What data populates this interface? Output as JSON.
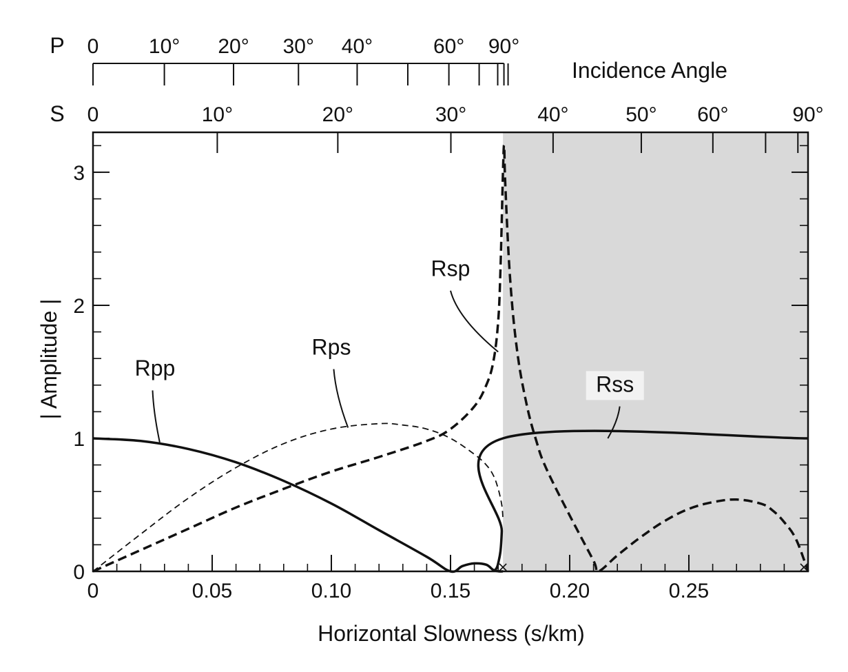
{
  "chart_data": {
    "type": "line",
    "xlabel": "Horizontal Slowness (s/km)",
    "ylabel": "| Amplitude |",
    "top_axis_title": "Incidence Angle",
    "xlim": [
      0,
      0.3
    ],
    "ylim": [
      0,
      3.3
    ],
    "x_ticks": [
      {
        "value": 0,
        "label": "0"
      },
      {
        "value": 0.05,
        "label": "0.05"
      },
      {
        "value": 0.1,
        "label": "0.10"
      },
      {
        "value": 0.15,
        "label": "0.15"
      },
      {
        "value": 0.2,
        "label": "0.20"
      },
      {
        "value": 0.25,
        "label": "0.25"
      }
    ],
    "x_minor_step": 0.01,
    "y_ticks": [
      {
        "value": 0,
        "label": "0"
      },
      {
        "value": 1,
        "label": "1"
      },
      {
        "value": 2,
        "label": "2"
      },
      {
        "value": 3,
        "label": "3"
      }
    ],
    "y_minor_step": 0.2,
    "p_axis": {
      "name": "P",
      "velocity_km_s": 5.8,
      "labeled_angles": [
        {
          "deg": 0,
          "label": "0"
        },
        {
          "deg": 10,
          "label": "10°"
        },
        {
          "deg": 20,
          "label": "20°"
        },
        {
          "deg": 30,
          "label": "30°"
        },
        {
          "deg": 40,
          "label": "40°"
        },
        {
          "deg": 60,
          "label": "60°"
        },
        {
          "deg": 90,
          "label": "90°"
        }
      ],
      "tick_angles": [
        0,
        10,
        20,
        30,
        40,
        50,
        60,
        70,
        80,
        90
      ]
    },
    "s_axis": {
      "name": "S",
      "velocity_km_s": 3.33,
      "labeled_angles": [
        {
          "deg": 0,
          "label": "0"
        },
        {
          "deg": 10,
          "label": "10°"
        },
        {
          "deg": 20,
          "label": "20°"
        },
        {
          "deg": 30,
          "label": "30°"
        },
        {
          "deg": 40,
          "label": "40°"
        },
        {
          "deg": 50,
          "label": "50°"
        },
        {
          "deg": 60,
          "label": "60°"
        },
        {
          "deg": 90,
          "label": "90°"
        }
      ],
      "tick_angles": [
        0,
        10,
        20,
        30,
        40,
        50,
        60,
        70,
        80,
        90
      ]
    },
    "shaded_region": {
      "x_from": 0.172,
      "x_to": 0.3,
      "color": "#d9d9d9"
    },
    "marker_x_symbols": [
      0.172,
      0.3
    ],
    "series": [
      {
        "name": "Rpp",
        "style": "solid",
        "width": 3.5,
        "x": [
          0,
          0.02,
          0.04,
          0.06,
          0.08,
          0.1,
          0.12,
          0.14,
          0.15,
          0.155,
          0.16,
          0.165,
          0.168,
          0.1705,
          0.172
        ],
        "y": [
          1.0,
          0.98,
          0.92,
          0.82,
          0.68,
          0.51,
          0.31,
          0.11,
          0.0,
          0.04,
          0.06,
          0.05,
          0.01,
          0.0,
          0.0
        ]
      },
      {
        "name": "Rps",
        "style": "thin-dashed",
        "width": 1.8,
        "x": [
          0,
          0.02,
          0.04,
          0.06,
          0.08,
          0.1,
          0.12,
          0.13,
          0.14,
          0.15,
          0.16,
          0.165,
          0.168,
          0.17,
          0.1715,
          0.172
        ],
        "y": [
          0,
          0.28,
          0.55,
          0.78,
          0.96,
          1.07,
          1.11,
          1.1,
          1.07,
          1.0,
          0.88,
          0.8,
          0.72,
          0.62,
          0.5,
          0.4
        ]
      },
      {
        "name": "Rsp",
        "style": "thick-dashed",
        "width": 3.5,
        "x": [
          0,
          0.02,
          0.04,
          0.06,
          0.08,
          0.1,
          0.12,
          0.14,
          0.15,
          0.16,
          0.165,
          0.168,
          0.17,
          0.171,
          0.172,
          0.1725,
          0.173,
          0.175,
          0.178,
          0.182,
          0.186,
          0.19,
          0.2,
          0.21,
          0.212,
          0.22,
          0.23,
          0.24,
          0.25,
          0.26,
          0.27,
          0.28,
          0.285,
          0.29,
          0.295,
          0.3
        ],
        "y": [
          0,
          0.16,
          0.32,
          0.48,
          0.62,
          0.75,
          0.86,
          0.98,
          1.07,
          1.24,
          1.4,
          1.58,
          1.88,
          2.3,
          3.0,
          3.2,
          2.9,
          2.2,
          1.65,
          1.25,
          0.98,
          0.78,
          0.42,
          0.08,
          0.0,
          0.12,
          0.26,
          0.38,
          0.47,
          0.52,
          0.54,
          0.51,
          0.46,
          0.37,
          0.24,
          0.0
        ]
      },
      {
        "name": "Rss",
        "style": "solid",
        "width": 3.5,
        "x": [
          0.168,
          0.17,
          0.1715,
          0.172,
          0.3
        ],
        "y": [
          0.0,
          0.06,
          0.3,
          1.0,
          1.0
        ]
      }
    ],
    "annotations": [
      {
        "text": "Rpp",
        "x": 0.026,
        "y": 1.47,
        "leader": [
          [
            0.025,
            1.36
          ],
          [
            0.028,
            0.97
          ]
        ]
      },
      {
        "text": "Rps",
        "x": 0.1,
        "y": 1.63,
        "leader": [
          [
            0.101,
            1.52
          ],
          [
            0.107,
            1.08
          ]
        ]
      },
      {
        "text": "Rsp",
        "x": 0.15,
        "y": 2.22,
        "leader": [
          [
            0.15,
            2.11
          ],
          [
            0.17,
            1.65
          ]
        ]
      },
      {
        "text": "Rss",
        "x": 0.219,
        "y": 1.35,
        "leader": [
          [
            0.221,
            1.24
          ],
          [
            0.216,
            1.0
          ]
        ]
      }
    ]
  }
}
